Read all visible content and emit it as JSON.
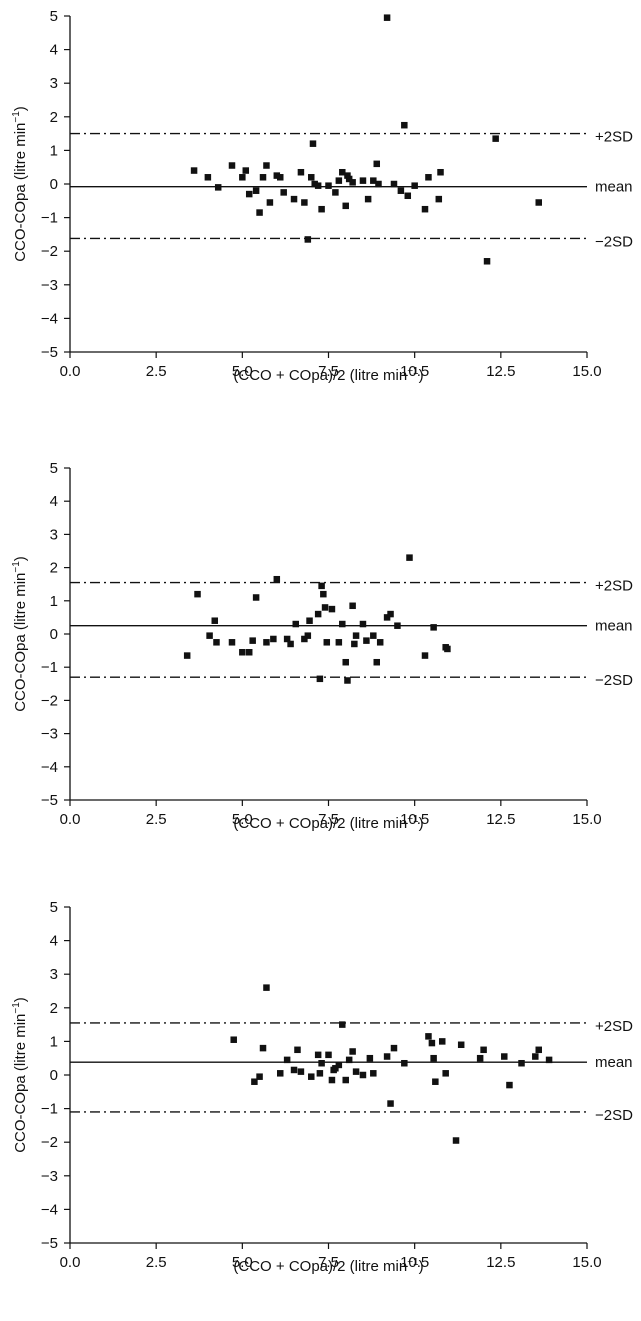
{
  "chart_data": [
    {
      "type": "scatter",
      "xlabel": "(CCO + COpa)/2 (litre min",
      "xlabel_sup": "−1",
      "xlabel_tail": ")",
      "ylabel": "CCO-COpa (litre min",
      "ylabel_sup": "−1",
      "ylabel_tail": ")",
      "xlim": [
        0,
        15
      ],
      "ylim": [
        -5,
        5
      ],
      "xticks": [
        "0.0",
        "2.5",
        "5.0",
        "7.5",
        "10.5",
        "12.5",
        "15.0"
      ],
      "yticks": [
        "5",
        "4",
        "3",
        "2",
        "1",
        "0",
        "−1",
        "−2",
        "−3",
        "−4",
        "−5"
      ],
      "grid": false,
      "reference_lines": [
        {
          "label": "+2SD",
          "value": 1.5,
          "style": "dash-dot"
        },
        {
          "label": "mean",
          "value": -0.08,
          "style": "solid"
        },
        {
          "label": "−2SD",
          "value": -1.62,
          "style": "dash-dot"
        }
      ],
      "points": [
        [
          3.6,
          0.4
        ],
        [
          4.0,
          0.2
        ],
        [
          4.3,
          -0.1
        ],
        [
          4.7,
          0.55
        ],
        [
          5.0,
          0.2
        ],
        [
          5.1,
          0.4
        ],
        [
          5.2,
          -0.3
        ],
        [
          5.4,
          -0.2
        ],
        [
          5.5,
          -0.85
        ],
        [
          5.6,
          0.2
        ],
        [
          5.7,
          0.55
        ],
        [
          5.8,
          -0.55
        ],
        [
          6.0,
          0.25
        ],
        [
          6.1,
          0.2
        ],
        [
          6.2,
          -0.25
        ],
        [
          6.5,
          -0.45
        ],
        [
          6.7,
          0.35
        ],
        [
          6.8,
          -0.55
        ],
        [
          6.9,
          -1.65
        ],
        [
          7.0,
          0.2
        ],
        [
          7.05,
          1.2
        ],
        [
          7.1,
          0.0
        ],
        [
          7.2,
          -0.05
        ],
        [
          7.3,
          -0.75
        ],
        [
          7.5,
          -0.05
        ],
        [
          7.7,
          -0.25
        ],
        [
          7.8,
          0.1
        ],
        [
          7.9,
          0.35
        ],
        [
          8.0,
          -0.65
        ],
        [
          8.05,
          0.25
        ],
        [
          8.1,
          0.15
        ],
        [
          8.2,
          0.05
        ],
        [
          8.5,
          0.1
        ],
        [
          8.65,
          -0.45
        ],
        [
          8.8,
          0.1
        ],
        [
          8.9,
          0.6
        ],
        [
          8.95,
          0.0
        ],
        [
          9.2,
          4.95
        ],
        [
          9.4,
          0.0
        ],
        [
          9.6,
          -0.2
        ],
        [
          9.7,
          1.75
        ],
        [
          9.8,
          -0.35
        ],
        [
          10.0,
          -0.05
        ],
        [
          10.3,
          -0.75
        ],
        [
          10.4,
          0.2
        ],
        [
          10.7,
          -0.45
        ],
        [
          10.75,
          0.35
        ],
        [
          12.1,
          -2.3
        ],
        [
          12.35,
          1.35
        ],
        [
          13.6,
          -0.55
        ]
      ]
    },
    {
      "type": "scatter",
      "xlabel": "(CCO + COpa)/2 (litre min",
      "xlabel_sup": "−1",
      "xlabel_tail": ")",
      "ylabel": "CCO-COpa (litre min",
      "ylabel_sup": "−1",
      "ylabel_tail": ")",
      "xlim": [
        0,
        15
      ],
      "ylim": [
        -5,
        5
      ],
      "xticks": [
        "0.0",
        "2.5",
        "5.0",
        "7.5",
        "10.5",
        "12.5",
        "15.0"
      ],
      "yticks": [
        "5",
        "4",
        "3",
        "2",
        "1",
        "0",
        "−1",
        "−2",
        "−3",
        "−4",
        "−5"
      ],
      "grid": false,
      "reference_lines": [
        {
          "label": "+2SD",
          "value": 1.55,
          "style": "dash-dot"
        },
        {
          "label": "mean",
          "value": 0.25,
          "style": "solid"
        },
        {
          "label": "−2SD",
          "value": -1.3,
          "style": "dash-dot"
        }
      ],
      "points": [
        [
          3.4,
          -0.65
        ],
        [
          3.7,
          1.2
        ],
        [
          4.05,
          -0.05
        ],
        [
          4.2,
          0.4
        ],
        [
          4.25,
          -0.25
        ],
        [
          4.7,
          -0.25
        ],
        [
          5.0,
          -0.55
        ],
        [
          5.2,
          -0.55
        ],
        [
          5.3,
          -0.2
        ],
        [
          5.4,
          1.1
        ],
        [
          5.7,
          -0.25
        ],
        [
          5.9,
          -0.15
        ],
        [
          6.0,
          1.65
        ],
        [
          6.3,
          -0.15
        ],
        [
          6.4,
          -0.3
        ],
        [
          6.55,
          0.3
        ],
        [
          6.8,
          -0.15
        ],
        [
          6.9,
          -0.05
        ],
        [
          6.95,
          0.4
        ],
        [
          7.2,
          0.6
        ],
        [
          7.25,
          -1.35
        ],
        [
          7.3,
          1.45
        ],
        [
          7.35,
          1.2
        ],
        [
          7.4,
          0.8
        ],
        [
          7.45,
          -0.25
        ],
        [
          7.6,
          0.75
        ],
        [
          7.8,
          -0.25
        ],
        [
          7.9,
          0.3
        ],
        [
          8.0,
          -0.85
        ],
        [
          8.05,
          -1.4
        ],
        [
          8.2,
          0.85
        ],
        [
          8.25,
          -0.3
        ],
        [
          8.3,
          -0.05
        ],
        [
          8.5,
          0.3
        ],
        [
          8.6,
          -0.2
        ],
        [
          8.8,
          -0.05
        ],
        [
          8.9,
          -0.85
        ],
        [
          9.0,
          -0.25
        ],
        [
          9.2,
          0.5
        ],
        [
          9.3,
          0.6
        ],
        [
          9.5,
          0.25
        ],
        [
          9.85,
          2.3
        ],
        [
          10.3,
          -0.65
        ],
        [
          10.55,
          0.2
        ],
        [
          10.9,
          -0.4
        ],
        [
          10.95,
          -0.45
        ]
      ]
    },
    {
      "type": "scatter",
      "xlabel": "(CCO + COpa)/2 (litre min",
      "xlabel_sup": "−1",
      "xlabel_tail": ")",
      "ylabel": "CCO-COpa (litre min",
      "ylabel_sup": "−1",
      "ylabel_tail": ")",
      "xlim": [
        0,
        15
      ],
      "ylim": [
        -5,
        5
      ],
      "xticks": [
        "0.0",
        "2.5",
        "5.0",
        "7.5",
        "10.5",
        "12.5",
        "15.0"
      ],
      "yticks": [
        "5",
        "4",
        "3",
        "2",
        "1",
        "0",
        "−1",
        "−2",
        "−3",
        "−4",
        "−5"
      ],
      "grid": false,
      "reference_lines": [
        {
          "label": "+2SD",
          "value": 1.55,
          "style": "dash-dot"
        },
        {
          "label": "mean",
          "value": 0.38,
          "style": "solid"
        },
        {
          "label": "−2SD",
          "value": -1.1,
          "style": "dash-dot"
        }
      ],
      "points": [
        [
          4.75,
          1.05
        ],
        [
          5.35,
          -0.2
        ],
        [
          5.5,
          -0.05
        ],
        [
          5.6,
          0.8
        ],
        [
          5.7,
          2.6
        ],
        [
          6.1,
          0.05
        ],
        [
          6.3,
          0.45
        ],
        [
          6.5,
          0.15
        ],
        [
          6.6,
          0.75
        ],
        [
          6.7,
          0.1
        ],
        [
          7.0,
          -0.05
        ],
        [
          7.2,
          0.6
        ],
        [
          7.25,
          0.05
        ],
        [
          7.3,
          0.35
        ],
        [
          7.5,
          0.6
        ],
        [
          7.6,
          -0.15
        ],
        [
          7.65,
          0.15
        ],
        [
          7.7,
          0.2
        ],
        [
          7.8,
          0.3
        ],
        [
          7.9,
          1.5
        ],
        [
          8.0,
          -0.15
        ],
        [
          8.1,
          0.45
        ],
        [
          8.2,
          0.7
        ],
        [
          8.3,
          0.1
        ],
        [
          8.5,
          0.0
        ],
        [
          8.7,
          0.5
        ],
        [
          8.8,
          0.05
        ],
        [
          9.2,
          0.55
        ],
        [
          9.3,
          -0.85
        ],
        [
          9.4,
          0.8
        ],
        [
          9.7,
          0.35
        ],
        [
          10.4,
          1.15
        ],
        [
          10.5,
          0.95
        ],
        [
          10.55,
          0.5
        ],
        [
          10.6,
          -0.2
        ],
        [
          10.8,
          1.0
        ],
        [
          10.9,
          0.05
        ],
        [
          11.2,
          -1.95
        ],
        [
          11.35,
          0.9
        ],
        [
          11.9,
          0.5
        ],
        [
          12.0,
          0.75
        ],
        [
          12.6,
          0.55
        ],
        [
          12.75,
          -0.3
        ],
        [
          13.1,
          0.35
        ],
        [
          13.5,
          0.55
        ],
        [
          13.6,
          0.75
        ],
        [
          13.9,
          0.45
        ]
      ]
    }
  ]
}
